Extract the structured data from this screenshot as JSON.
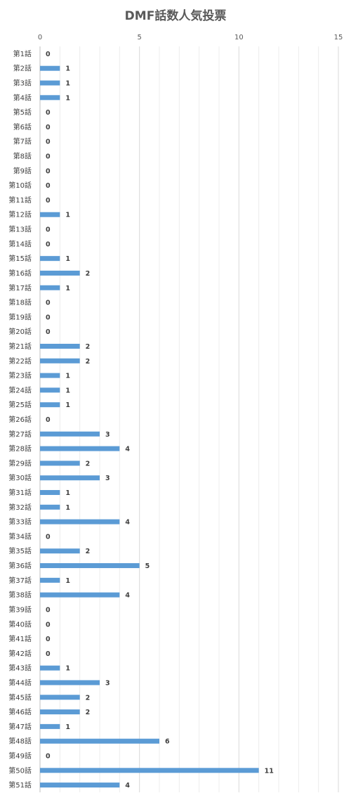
{
  "chart_data": {
    "type": "bar",
    "orientation": "horizontal",
    "title": "DMF話数人気投票",
    "xlabel": "",
    "ylabel": "",
    "xlim": [
      0,
      15
    ],
    "xticks": [
      "0",
      "5",
      "10",
      "15"
    ],
    "xaxis_position": "top",
    "grid": true,
    "bar_color": "#5b9bd5",
    "data_labels": true,
    "categories": [
      "第1話",
      "第2話",
      "第3話",
      "第4話",
      "第5話",
      "第6話",
      "第7話",
      "第8話",
      "第9話",
      "第10話",
      "第11話",
      "第12話",
      "第13話",
      "第14話",
      "第15話",
      "第16話",
      "第17話",
      "第18話",
      "第19話",
      "第20話",
      "第21話",
      "第22話",
      "第23話",
      "第24話",
      "第25話",
      "第26話",
      "第27話",
      "第28話",
      "第29話",
      "第30話",
      "第31話",
      "第32話",
      "第33話",
      "第34話",
      "第35話",
      "第36話",
      "第37話",
      "第38話",
      "第39話",
      "第40話",
      "第41話",
      "第42話",
      "第43話",
      "第44話",
      "第45話",
      "第46話",
      "第47話",
      "第48話",
      "第49話",
      "第50話",
      "第51話"
    ],
    "values": [
      0,
      1,
      1,
      1,
      0,
      0,
      0,
      0,
      0,
      0,
      0,
      1,
      0,
      0,
      1,
      2,
      1,
      0,
      0,
      0,
      2,
      2,
      1,
      1,
      1,
      0,
      3,
      4,
      2,
      3,
      1,
      1,
      4,
      0,
      2,
      5,
      1,
      4,
      0,
      0,
      0,
      0,
      1,
      3,
      2,
      2,
      1,
      6,
      0,
      11,
      4
    ]
  }
}
